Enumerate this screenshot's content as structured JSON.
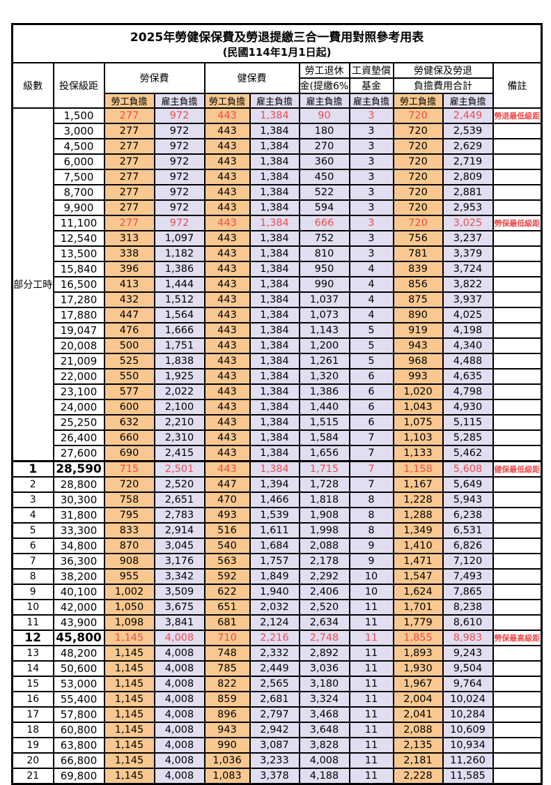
{
  "title": "2025年勞健保保費及勞退提繳三合一費用對照參考用表",
  "subtitle": "(民國114年1月1日起)",
  "header": {
    "level": "級數",
    "bracket": "投保級距",
    "labor_insurance": "勞保費",
    "health_insurance": "健保費",
    "pension_line1": "勞工退休",
    "pension_line2": "金(提繳6%)",
    "wage_fund_line1": "工資墊償",
    "wage_fund_line2": "基金",
    "total_line1": "勞健保及勞退",
    "total_line2": "負擔費用合計",
    "remark": "備註",
    "worker_label": "勞工負擔",
    "employer_label": "雇主負擔"
  },
  "part_time_label": "部分工時",
  "part_time_rowspan": 23,
  "colors": {
    "worker_bg": "#F8C890",
    "employer_bg": "#E0DEF0",
    "highlight_red": "#EE4B4B"
  },
  "rows": [
    {
      "level": "",
      "bracket": "1,500",
      "cells": [
        "277",
        "972",
        "443",
        "1,384",
        "90",
        "3",
        "720",
        "2,449"
      ],
      "remark": "勞退最低級距",
      "red": true,
      "bold": false,
      "section": false
    },
    {
      "level": "",
      "bracket": "3,000",
      "cells": [
        "277",
        "972",
        "443",
        "1,384",
        "180",
        "3",
        "720",
        "2,539"
      ],
      "remark": "",
      "red": false,
      "bold": false,
      "section": false
    },
    {
      "level": "",
      "bracket": "4,500",
      "cells": [
        "277",
        "972",
        "443",
        "1,384",
        "270",
        "3",
        "720",
        "2,629"
      ],
      "remark": "",
      "red": false,
      "bold": false,
      "section": false
    },
    {
      "level": "",
      "bracket": "6,000",
      "cells": [
        "277",
        "972",
        "443",
        "1,384",
        "360",
        "3",
        "720",
        "2,719"
      ],
      "remark": "",
      "red": false,
      "bold": false,
      "section": false
    },
    {
      "level": "",
      "bracket": "7,500",
      "cells": [
        "277",
        "972",
        "443",
        "1,384",
        "450",
        "3",
        "720",
        "2,809"
      ],
      "remark": "",
      "red": false,
      "bold": false,
      "section": false
    },
    {
      "level": "",
      "bracket": "8,700",
      "cells": [
        "277",
        "972",
        "443",
        "1,384",
        "522",
        "3",
        "720",
        "2,881"
      ],
      "remark": "",
      "red": false,
      "bold": false,
      "section": false
    },
    {
      "level": "",
      "bracket": "9,900",
      "cells": [
        "277",
        "972",
        "443",
        "1,384",
        "594",
        "3",
        "720",
        "2,953"
      ],
      "remark": "",
      "red": false,
      "bold": false,
      "section": false
    },
    {
      "level": "",
      "bracket": "11,100",
      "cells": [
        "277",
        "972",
        "443",
        "1,384",
        "666",
        "3",
        "720",
        "3,025"
      ],
      "remark": "勞保最低級距",
      "red": true,
      "bold": false,
      "section": false
    },
    {
      "level": "",
      "bracket": "12,540",
      "cells": [
        "313",
        "1,097",
        "443",
        "1,384",
        "752",
        "3",
        "756",
        "3,237"
      ],
      "remark": "",
      "red": false,
      "bold": false,
      "section": false
    },
    {
      "level": "",
      "bracket": "13,500",
      "cells": [
        "338",
        "1,182",
        "443",
        "1,384",
        "810",
        "3",
        "781",
        "3,379"
      ],
      "remark": "",
      "red": false,
      "bold": false,
      "section": false
    },
    {
      "level": "",
      "bracket": "15,840",
      "cells": [
        "396",
        "1,386",
        "443",
        "1,384",
        "950",
        "4",
        "839",
        "3,724"
      ],
      "remark": "",
      "red": false,
      "bold": false,
      "section": false
    },
    {
      "level": "",
      "bracket": "16,500",
      "cells": [
        "413",
        "1,444",
        "443",
        "1,384",
        "990",
        "4",
        "856",
        "3,822"
      ],
      "remark": "",
      "red": false,
      "bold": false,
      "section": false
    },
    {
      "level": "",
      "bracket": "17,280",
      "cells": [
        "432",
        "1,512",
        "443",
        "1,384",
        "1,037",
        "4",
        "875",
        "3,937"
      ],
      "remark": "",
      "red": false,
      "bold": false,
      "section": false
    },
    {
      "level": "",
      "bracket": "17,880",
      "cells": [
        "447",
        "1,564",
        "443",
        "1,384",
        "1,073",
        "4",
        "890",
        "4,025"
      ],
      "remark": "",
      "red": false,
      "bold": false,
      "section": false
    },
    {
      "level": "",
      "bracket": "19,047",
      "cells": [
        "476",
        "1,666",
        "443",
        "1,384",
        "1,143",
        "5",
        "919",
        "4,198"
      ],
      "remark": "",
      "red": false,
      "bold": false,
      "section": false
    },
    {
      "level": "",
      "bracket": "20,008",
      "cells": [
        "500",
        "1,751",
        "443",
        "1,384",
        "1,200",
        "5",
        "943",
        "4,340"
      ],
      "remark": "",
      "red": false,
      "bold": false,
      "section": false
    },
    {
      "level": "",
      "bracket": "21,009",
      "cells": [
        "525",
        "1,838",
        "443",
        "1,384",
        "1,261",
        "5",
        "968",
        "4,488"
      ],
      "remark": "",
      "red": false,
      "bold": false,
      "section": false
    },
    {
      "level": "",
      "bracket": "22,000",
      "cells": [
        "550",
        "1,925",
        "443",
        "1,384",
        "1,320",
        "6",
        "993",
        "4,635"
      ],
      "remark": "",
      "red": false,
      "bold": false,
      "section": false
    },
    {
      "level": "",
      "bracket": "23,100",
      "cells": [
        "577",
        "2,022",
        "443",
        "1,384",
        "1,386",
        "6",
        "1,020",
        "4,798"
      ],
      "remark": "",
      "red": false,
      "bold": false,
      "section": false
    },
    {
      "level": "",
      "bracket": "24,000",
      "cells": [
        "600",
        "2,100",
        "443",
        "1,384",
        "1,440",
        "6",
        "1,043",
        "4,930"
      ],
      "remark": "",
      "red": false,
      "bold": false,
      "section": false
    },
    {
      "level": "",
      "bracket": "25,250",
      "cells": [
        "632",
        "2,210",
        "443",
        "1,384",
        "1,515",
        "6",
        "1,075",
        "5,115"
      ],
      "remark": "",
      "red": false,
      "bold": false,
      "section": false
    },
    {
      "level": "",
      "bracket": "26,400",
      "cells": [
        "660",
        "2,310",
        "443",
        "1,384",
        "1,584",
        "7",
        "1,103",
        "5,285"
      ],
      "remark": "",
      "red": false,
      "bold": false,
      "section": false
    },
    {
      "level": "",
      "bracket": "27,600",
      "cells": [
        "690",
        "2,415",
        "443",
        "1,384",
        "1,656",
        "7",
        "1,133",
        "5,462"
      ],
      "remark": "",
      "red": false,
      "bold": false,
      "section": false
    },
    {
      "level": "1",
      "bracket": "28,590",
      "cells": [
        "715",
        "2,501",
        "443",
        "1,384",
        "1,715",
        "7",
        "1,158",
        "5,608"
      ],
      "remark": "健保最低級距",
      "red": true,
      "bold": true,
      "section": true
    },
    {
      "level": "2",
      "bracket": "28,800",
      "cells": [
        "720",
        "2,520",
        "447",
        "1,394",
        "1,728",
        "7",
        "1,167",
        "5,649"
      ],
      "remark": "",
      "red": false,
      "bold": false,
      "section": false
    },
    {
      "level": "3",
      "bracket": "30,300",
      "cells": [
        "758",
        "2,651",
        "470",
        "1,466",
        "1,818",
        "8",
        "1,228",
        "5,943"
      ],
      "remark": "",
      "red": false,
      "bold": false,
      "section": false
    },
    {
      "level": "4",
      "bracket": "31,800",
      "cells": [
        "795",
        "2,783",
        "493",
        "1,539",
        "1,908",
        "8",
        "1,288",
        "6,238"
      ],
      "remark": "",
      "red": false,
      "bold": false,
      "section": false
    },
    {
      "level": "5",
      "bracket": "33,300",
      "cells": [
        "833",
        "2,914",
        "516",
        "1,611",
        "1,998",
        "8",
        "1,349",
        "6,531"
      ],
      "remark": "",
      "red": false,
      "bold": false,
      "section": false
    },
    {
      "level": "6",
      "bracket": "34,800",
      "cells": [
        "870",
        "3,045",
        "540",
        "1,684",
        "2,088",
        "9",
        "1,410",
        "6,826"
      ],
      "remark": "",
      "red": false,
      "bold": false,
      "section": false
    },
    {
      "level": "7",
      "bracket": "36,300",
      "cells": [
        "908",
        "3,176",
        "563",
        "1,757",
        "2,178",
        "9",
        "1,471",
        "7,120"
      ],
      "remark": "",
      "red": false,
      "bold": false,
      "section": false
    },
    {
      "level": "8",
      "bracket": "38,200",
      "cells": [
        "955",
        "3,342",
        "592",
        "1,849",
        "2,292",
        "10",
        "1,547",
        "7,493"
      ],
      "remark": "",
      "red": false,
      "bold": false,
      "section": false
    },
    {
      "level": "9",
      "bracket": "40,100",
      "cells": [
        "1,002",
        "3,509",
        "622",
        "1,940",
        "2,406",
        "10",
        "1,624",
        "7,865"
      ],
      "remark": "",
      "red": false,
      "bold": false,
      "section": false
    },
    {
      "level": "10",
      "bracket": "42,000",
      "cells": [
        "1,050",
        "3,675",
        "651",
        "2,032",
        "2,520",
        "11",
        "1,701",
        "8,238"
      ],
      "remark": "",
      "red": false,
      "bold": false,
      "section": false
    },
    {
      "level": "11",
      "bracket": "43,900",
      "cells": [
        "1,098",
        "3,841",
        "681",
        "2,124",
        "2,634",
        "11",
        "1,779",
        "8,610"
      ],
      "remark": "",
      "red": false,
      "bold": false,
      "section": false
    },
    {
      "level": "12",
      "bracket": "45,800",
      "cells": [
        "1,145",
        "4,008",
        "710",
        "2,216",
        "2,748",
        "11",
        "1,855",
        "8,983"
      ],
      "remark": "勞保最高級距",
      "red": true,
      "bold": true,
      "section": false
    },
    {
      "level": "13",
      "bracket": "48,200",
      "cells": [
        "1,145",
        "4,008",
        "748",
        "2,332",
        "2,892",
        "11",
        "1,893",
        "9,243"
      ],
      "remark": "",
      "red": false,
      "bold": false,
      "section": false
    },
    {
      "level": "14",
      "bracket": "50,600",
      "cells": [
        "1,145",
        "4,008",
        "785",
        "2,449",
        "3,036",
        "11",
        "1,930",
        "9,504"
      ],
      "remark": "",
      "red": false,
      "bold": false,
      "section": false
    },
    {
      "level": "15",
      "bracket": "53,000",
      "cells": [
        "1,145",
        "4,008",
        "822",
        "2,565",
        "3,180",
        "11",
        "1,967",
        "9,764"
      ],
      "remark": "",
      "red": false,
      "bold": false,
      "section": false
    },
    {
      "level": "16",
      "bracket": "55,400",
      "cells": [
        "1,145",
        "4,008",
        "859",
        "2,681",
        "3,324",
        "11",
        "2,004",
        "10,024"
      ],
      "remark": "",
      "red": false,
      "bold": false,
      "section": false
    },
    {
      "level": "17",
      "bracket": "57,800",
      "cells": [
        "1,145",
        "4,008",
        "896",
        "2,797",
        "3,468",
        "11",
        "2,041",
        "10,284"
      ],
      "remark": "",
      "red": false,
      "bold": false,
      "section": false
    },
    {
      "level": "18",
      "bracket": "60,800",
      "cells": [
        "1,145",
        "4,008",
        "943",
        "2,942",
        "3,648",
        "11",
        "2,088",
        "10,609"
      ],
      "remark": "",
      "red": false,
      "bold": false,
      "section": false
    },
    {
      "level": "19",
      "bracket": "63,800",
      "cells": [
        "1,145",
        "4,008",
        "990",
        "3,087",
        "3,828",
        "11",
        "2,135",
        "10,934"
      ],
      "remark": "",
      "red": false,
      "bold": false,
      "section": false
    },
    {
      "level": "20",
      "bracket": "66,800",
      "cells": [
        "1,145",
        "4,008",
        "1,036",
        "3,233",
        "4,008",
        "11",
        "2,181",
        "11,260"
      ],
      "remark": "",
      "red": false,
      "bold": false,
      "section": false
    },
    {
      "level": "21",
      "bracket": "69,800",
      "cells": [
        "1,145",
        "4,008",
        "1,083",
        "3,378",
        "4,188",
        "11",
        "2,228",
        "11,585"
      ],
      "remark": "",
      "red": false,
      "bold": false,
      "section": false
    }
  ]
}
